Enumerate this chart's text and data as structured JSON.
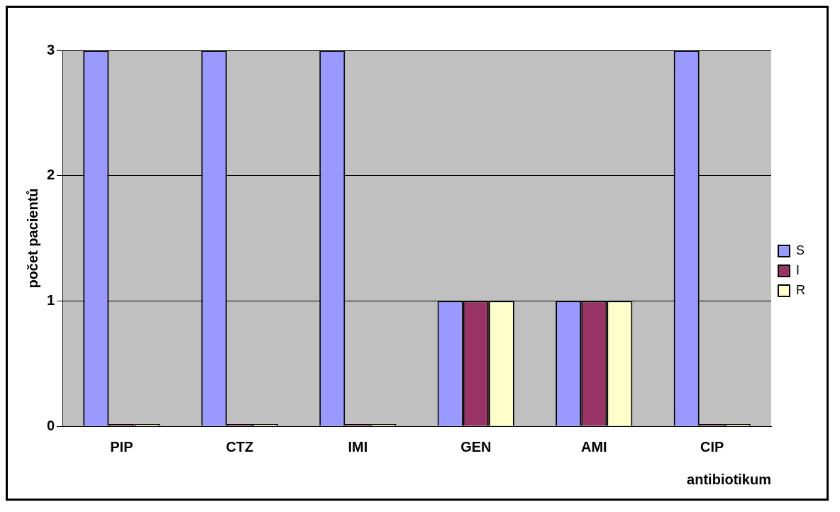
{
  "chart_data": {
    "type": "bar",
    "xlabel": "antibiotikum",
    "ylabel": "počet pacientů",
    "categories": [
      "PIP",
      "CTZ",
      "IMI",
      "GEN",
      "AMI",
      "CIP"
    ],
    "series": [
      {
        "name": "S",
        "color": "#9999ff",
        "values": [
          3,
          3,
          3,
          1,
          1,
          3
        ]
      },
      {
        "name": "I",
        "color": "#993366",
        "values": [
          0,
          0,
          0,
          1,
          1,
          0
        ]
      },
      {
        "name": "R",
        "color": "#ffffcc",
        "values": [
          0,
          0,
          0,
          1,
          1,
          0
        ]
      }
    ],
    "ylim": [
      0,
      3
    ],
    "yticks": [
      0,
      1,
      2,
      3
    ],
    "grid": "y",
    "legend": "right"
  }
}
